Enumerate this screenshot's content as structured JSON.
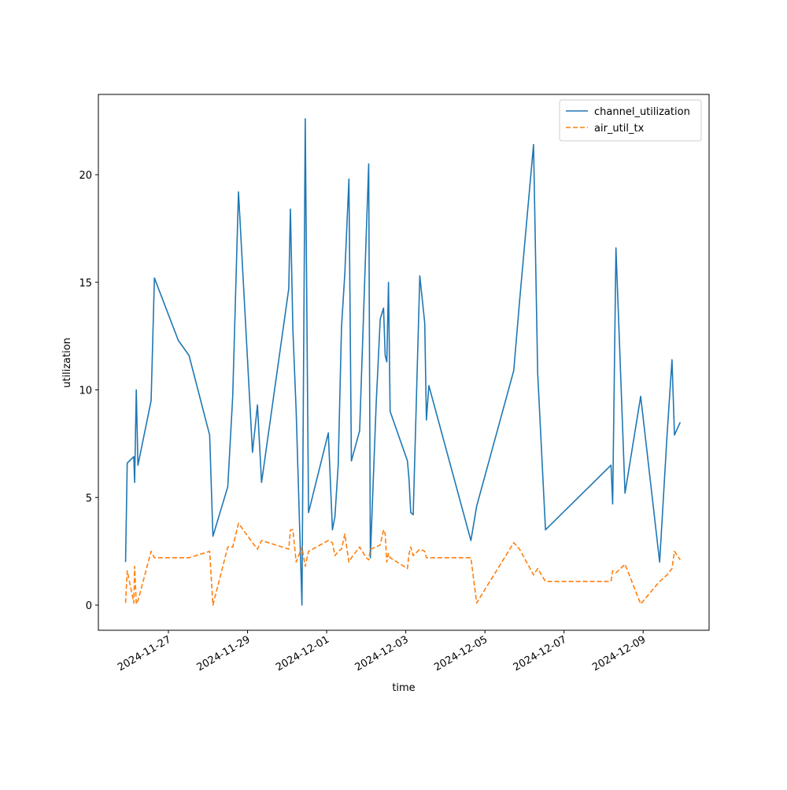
{
  "chart_data": {
    "type": "line",
    "xlabel": "time",
    "ylabel": "utilization",
    "x": [
      "2024-11-25T22:00",
      "2024-11-25T23:00",
      "2024-11-26T03:00",
      "2024-11-26T03:30",
      "2024-11-26T04:30",
      "2024-11-26T05:30",
      "2024-11-26T13:30",
      "2024-11-26T15:30",
      "2024-11-27T00:00",
      "2024-11-27T06:00",
      "2024-11-27T12:30",
      "2024-11-28T01:00",
      "2024-11-28T03:00",
      "2024-11-28T12:00",
      "2024-11-28T15:00",
      "2024-11-28T18:30",
      "2024-11-29T03:00",
      "2024-11-29T06:00",
      "2024-11-29T08:30",
      "2024-11-30T01:00",
      "2024-11-30T02:00",
      "2024-11-30T03:30",
      "2024-11-30T05:30",
      "2024-11-30T09:00",
      "2024-11-30T11:00",
      "2024-11-30T13:00",
      "2024-12-01T01:00",
      "2024-12-01T03:30",
      "2024-12-01T05:00",
      "2024-12-01T07:00",
      "2024-12-01T09:00",
      "2024-12-01T11:00",
      "2024-12-01T13:30",
      "2024-12-01T15:00",
      "2024-12-01T20:00",
      "2024-12-02T00:00",
      "2024-12-02T01:30",
      "2024-12-02T02:30",
      "2024-12-02T06:00",
      "2024-12-02T08:30",
      "2024-12-02T10:30",
      "2024-12-02T11:30",
      "2024-12-02T12:30",
      "2024-12-02T13:30",
      "2024-12-02T14:30",
      "2024-12-03T01:00",
      "2024-12-03T02:00",
      "2024-12-03T03:00",
      "2024-12-03T04:30",
      "2024-12-03T08:30",
      "2024-12-03T11:30",
      "2024-12-03T12:30",
      "2024-12-03T14:00",
      "2024-12-04T15:30",
      "2024-12-04T19:00",
      "2024-12-05T17:30",
      "2024-12-05T21:00",
      "2024-12-06T05:30",
      "2024-12-06T08:00",
      "2024-12-06T12:45",
      "2024-12-08T04:30",
      "2024-12-08T05:30",
      "2024-12-08T07:30",
      "2024-12-08T13:00",
      "2024-12-08T22:30",
      "2024-12-09T10:00",
      "2024-12-09T14:30",
      "2024-12-09T17:30",
      "2024-12-09T19:00",
      "2024-12-09T22:30"
    ],
    "series": [
      {
        "name": "channel_utilization",
        "color": "#1f77b4",
        "style": "solid",
        "values": [
          2.0,
          6.6,
          6.9,
          5.7,
          10.0,
          6.5,
          9.5,
          15.2,
          13.5,
          12.3,
          11.6,
          7.9,
          3.2,
          5.5,
          9.7,
          19.2,
          7.1,
          9.3,
          5.7,
          14.7,
          18.4,
          12.8,
          9.0,
          0.0,
          22.6,
          4.3,
          8.0,
          3.5,
          4.1,
          6.5,
          12.9,
          15.4,
          19.8,
          6.7,
          8.1,
          17.2,
          20.5,
          2.2,
          9.3,
          13.3,
          13.8,
          11.6,
          11.3,
          15.0,
          9.0,
          6.7,
          5.8,
          4.3,
          4.2,
          15.3,
          13.1,
          8.6,
          10.2,
          3.0,
          4.6,
          10.9,
          14.1,
          21.4,
          10.8,
          3.5,
          6.5,
          4.7,
          16.6,
          5.2,
          9.7,
          2.0,
          7.9,
          11.4,
          7.9,
          8.5
        ]
      },
      {
        "name": "air_util_tx",
        "color": "#ff7f0e",
        "style": "dashed",
        "values": [
          0.1,
          1.6,
          0.1,
          1.8,
          0.05,
          0.2,
          2.5,
          2.2,
          2.2,
          2.2,
          2.2,
          2.5,
          0.0,
          2.7,
          2.7,
          3.8,
          2.9,
          2.6,
          3.0,
          2.6,
          3.5,
          3.5,
          2.0,
          2.7,
          1.8,
          2.5,
          3.0,
          2.9,
          2.3,
          2.5,
          2.6,
          3.3,
          2.0,
          2.2,
          2.7,
          2.2,
          2.1,
          2.6,
          2.7,
          2.8,
          3.5,
          3.3,
          2.0,
          2.4,
          2.2,
          1.7,
          2.4,
          2.7,
          2.3,
          2.6,
          2.5,
          2.2,
          2.2,
          2.2,
          0.1,
          2.9,
          2.6,
          1.4,
          1.7,
          1.1,
          1.1,
          1.6,
          1.5,
          1.9,
          0.05,
          1.1,
          1.4,
          1.7,
          2.5,
          2.1
        ]
      }
    ],
    "xlim": [
      "2024-11-25T05:30",
      "2024-12-10T16:00"
    ],
    "xticks": [
      "2024-11-27",
      "2024-11-29",
      "2024-12-01",
      "2024-12-03",
      "2024-12-05",
      "2024-12-07",
      "2024-12-09"
    ],
    "ylim": [
      -1.17,
      23.73
    ],
    "yticks": [
      0,
      5,
      10,
      15,
      20
    ],
    "legend": "upper right",
    "grid": false
  }
}
